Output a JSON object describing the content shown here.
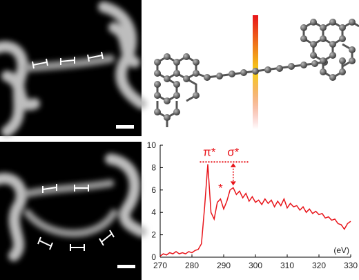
{
  "chart_data": {
    "type": "line",
    "color": "#e8141a",
    "x": [
      270,
      271,
      272,
      273,
      274,
      275,
      276,
      277,
      278,
      279,
      280,
      281,
      282,
      283,
      284,
      285,
      286,
      287,
      288,
      289,
      290,
      291,
      292,
      293,
      294,
      295,
      296,
      297,
      298,
      299,
      300,
      301,
      302,
      303,
      304,
      305,
      306,
      307,
      308,
      309,
      310,
      311,
      312,
      313,
      314,
      315,
      316,
      317,
      318,
      319,
      320,
      321,
      322,
      323,
      324,
      325,
      326,
      327,
      328,
      329,
      330
    ],
    "values": [
      0.1,
      0.3,
      0.2,
      0.4,
      0.3,
      0.5,
      0.3,
      0.4,
      0.3,
      0.5,
      0.4,
      0.6,
      0.7,
      1.2,
      4.5,
      8.3,
      4.0,
      3.4,
      4.9,
      5.2,
      4.3,
      5.0,
      6.0,
      6.2,
      5.6,
      5.9,
      5.3,
      5.7,
      5.0,
      5.4,
      4.9,
      5.1,
      4.7,
      5.2,
      4.8,
      5.1,
      4.5,
      5.0,
      4.6,
      5.2,
      4.4,
      4.8,
      4.5,
      4.6,
      4.2,
      4.5,
      4.0,
      4.3,
      3.9,
      4.1,
      3.8,
      3.9,
      3.5,
      3.6,
      3.3,
      3.4,
      3.0,
      2.9,
      2.5,
      3.0,
      3.2
    ],
    "xlim": [
      270,
      330
    ],
    "xticks": [
      270,
      280,
      290,
      300,
      310,
      320,
      330
    ],
    "ylim": [
      0,
      10
    ],
    "yticks": [
      0,
      2,
      4,
      6,
      8,
      10
    ],
    "x_label": "(eV)",
    "annotations": [
      {
        "text": "π*",
        "x": 285.5,
        "y": 9.4
      },
      {
        "text": "σ*",
        "x": 293,
        "y": 9.4
      },
      {
        "text": "*",
        "x": 289,
        "y": 6.2
      }
    ],
    "hline": {
      "y": 8.5,
      "x": [
        282.5,
        298
      ]
    },
    "arrow": {
      "x": 293,
      "from": 8.4,
      "to": 6.4
    }
  }
}
